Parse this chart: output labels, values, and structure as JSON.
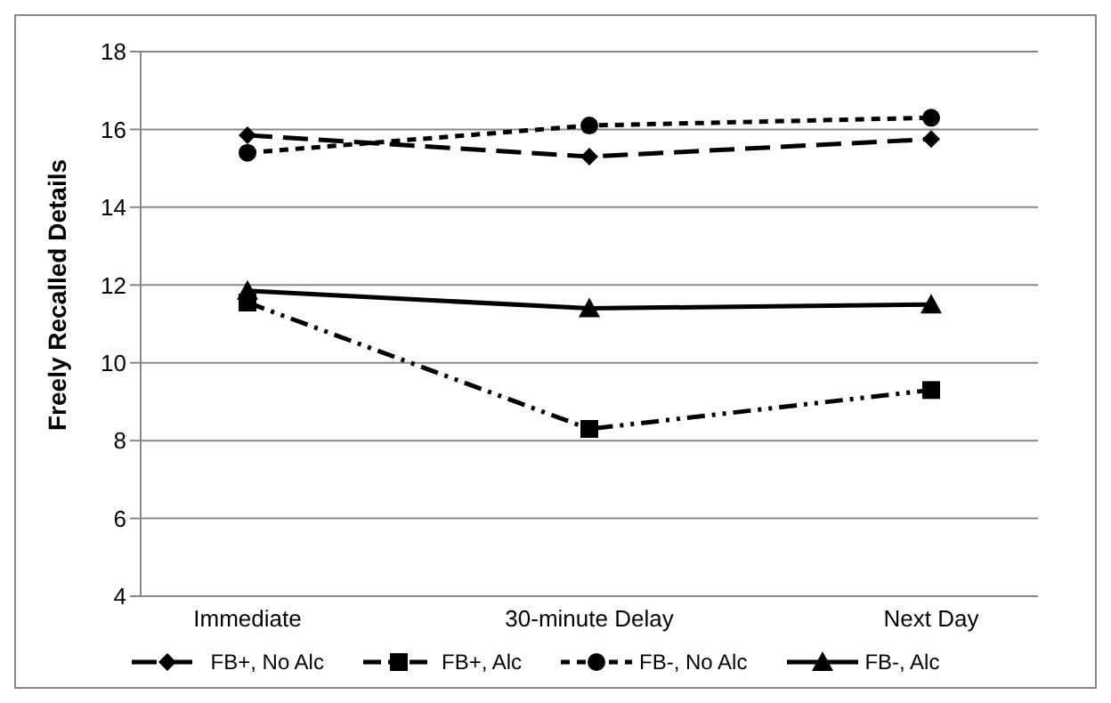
{
  "chart_data": {
    "type": "line",
    "ylabel": "Freely Recalled Details",
    "categories": [
      "Immediate",
      "30-minute Delay",
      "Next Day"
    ],
    "ylim": [
      4,
      18
    ],
    "yticks": [
      4,
      6,
      8,
      10,
      12,
      14,
      16,
      18
    ],
    "grid": "y",
    "legend": "bottom",
    "series": [
      {
        "name": "FB+, No Alc",
        "color": "#000000",
        "marker": "diamond",
        "line_style": "dashed",
        "values": [
          15.85,
          15.3,
          15.75
        ]
      },
      {
        "name": "FB+, Alc",
        "color": "#000000",
        "marker": "square",
        "line_style": "dashdot",
        "values": [
          11.55,
          8.3,
          9.3
        ]
      },
      {
        "name": "FB-, No Alc",
        "color": "#000000",
        "marker": "circle",
        "line_style": "dotted",
        "values": [
          15.4,
          16.1,
          16.3
        ]
      },
      {
        "name": "FB-, Alc",
        "color": "#000000",
        "marker": "triangle",
        "line_style": "solid",
        "values": [
          11.85,
          11.4,
          11.5
        ]
      }
    ]
  }
}
